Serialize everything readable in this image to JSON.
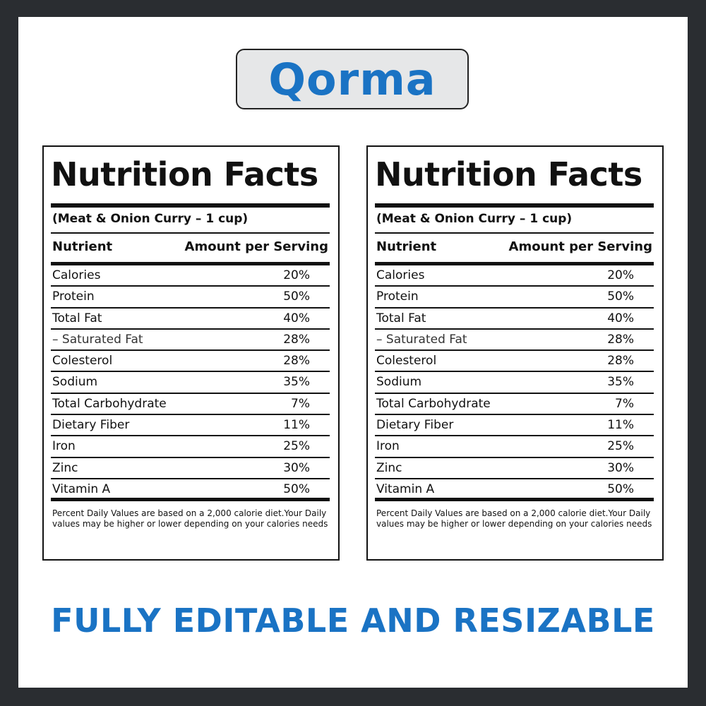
{
  "title": "Qorma",
  "tagline": "FULLY EDITABLE AND RESIZABLE",
  "colors": {
    "accent": "#1a73c4",
    "frame": "#2a2d31",
    "title_box": "#e6e7e8"
  },
  "labels": [
    {
      "heading": "Nutrition Facts",
      "serving": "(Meat & Onion Curry – 1 cup)",
      "col_nutrient": "Nutrient",
      "col_amount": "Amount per Serving",
      "rows": [
        {
          "name": "Calories",
          "value": "20%"
        },
        {
          "name": "Protein",
          "value": "50%"
        },
        {
          "name": "Total Fat",
          "value": "40%"
        },
        {
          "name": "– Saturated Fat",
          "value": "28%"
        },
        {
          "name": "Colesterol",
          "value": "28%"
        },
        {
          "name": "Sodium",
          "value": "35%"
        },
        {
          "name": "Total Carbohydrate",
          "value": "7%"
        },
        {
          "name": "Dietary Fiber",
          "value": "11%"
        },
        {
          "name": "Iron",
          "value": "25%"
        },
        {
          "name": "Zinc",
          "value": "30%"
        },
        {
          "name": "Vitamin A",
          "value": "50%"
        }
      ],
      "footnote": "Percent Daily Values are based on a 2,000 calorie diet.Your Daily values may be higher or lower depending on your calories needs"
    },
    {
      "heading": "Nutrition Facts",
      "serving": "(Meat & Onion Curry – 1 cup)",
      "col_nutrient": "Nutrient",
      "col_amount": "Amount per Serving",
      "rows": [
        {
          "name": "Calories",
          "value": "20%"
        },
        {
          "name": "Protein",
          "value": "50%"
        },
        {
          "name": "Total Fat",
          "value": "40%"
        },
        {
          "name": "– Saturated Fat",
          "value": "28%"
        },
        {
          "name": "Colesterol",
          "value": "28%"
        },
        {
          "name": "Sodium",
          "value": "35%"
        },
        {
          "name": "Total Carbohydrate",
          "value": "7%"
        },
        {
          "name": "Dietary Fiber",
          "value": "11%"
        },
        {
          "name": "Iron",
          "value": "25%"
        },
        {
          "name": "Zinc",
          "value": "30%"
        },
        {
          "name": "Vitamin A",
          "value": "50%"
        }
      ],
      "footnote": "Percent Daily Values are based on a 2,000 calorie diet.Your Daily values may be higher or lower depending on your calories needs"
    }
  ]
}
